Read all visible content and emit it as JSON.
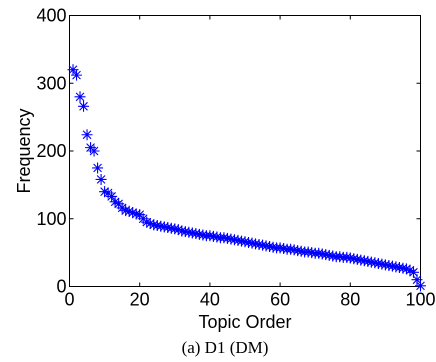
{
  "chart_data": {
    "type": "scatter",
    "title": "",
    "caption": "(a) D1 (DM)",
    "xlabel": "Topic Order",
    "ylabel": "Frequency",
    "xlim": [
      0,
      100
    ],
    "ylim": [
      0,
      400
    ],
    "xticks": [
      0,
      20,
      40,
      60,
      80,
      100
    ],
    "yticks": [
      0,
      100,
      200,
      300,
      400
    ],
    "xtick_labels": [
      "0",
      "20",
      "40",
      "60",
      "80",
      "100"
    ],
    "ytick_labels": [
      "0",
      "100",
      "200",
      "300",
      "400"
    ],
    "marker": "asterisk",
    "color": "#0000ff",
    "grid": false,
    "series": [
      {
        "x": [
          1,
          2,
          3,
          4,
          5,
          6,
          7,
          8,
          9,
          10,
          11,
          12,
          13,
          14,
          15,
          16,
          17,
          18,
          19,
          20,
          21,
          22,
          23,
          24,
          25,
          26,
          27,
          28,
          29,
          30,
          31,
          32,
          33,
          34,
          35,
          36,
          37,
          38,
          39,
          40,
          41,
          42,
          43,
          44,
          45,
          46,
          47,
          48,
          49,
          50,
          51,
          52,
          53,
          54,
          55,
          56,
          57,
          58,
          59,
          60,
          61,
          62,
          63,
          64,
          65,
          66,
          67,
          68,
          69,
          70,
          71,
          72,
          73,
          74,
          75,
          76,
          77,
          78,
          79,
          80,
          81,
          82,
          83,
          84,
          85,
          86,
          87,
          88,
          89,
          90,
          91,
          92,
          93,
          94,
          95,
          96,
          97,
          98,
          99,
          100
        ],
        "y": [
          320,
          312,
          280,
          266,
          224,
          205,
          200,
          175,
          158,
          140,
          138,
          133,
          125,
          122,
          116,
          112,
          111,
          109,
          107,
          106,
          100,
          95,
          93,
          91,
          90,
          89,
          88,
          87,
          86,
          85,
          84,
          82,
          81,
          80,
          79,
          78,
          77,
          76,
          75,
          75,
          74,
          73,
          72,
          72,
          71,
          70,
          69,
          68,
          67,
          66,
          65,
          64,
          63,
          62,
          61,
          60,
          59,
          58,
          57,
          57,
          56,
          55,
          55,
          54,
          53,
          52,
          51,
          51,
          50,
          49,
          49,
          48,
          47,
          46,
          45,
          44,
          44,
          43,
          43,
          42,
          41,
          40,
          39,
          38,
          37,
          36,
          35,
          34,
          33,
          32,
          31,
          30,
          29,
          28,
          27,
          26,
          24,
          21,
          10,
          1
        ]
      }
    ]
  }
}
